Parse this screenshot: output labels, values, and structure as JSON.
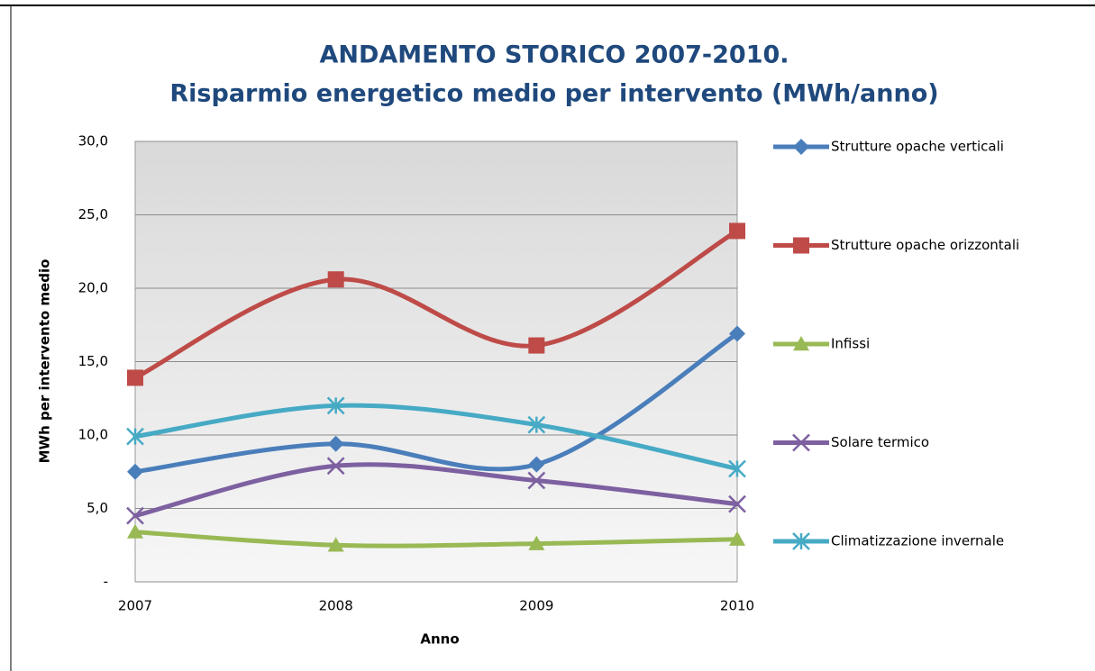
{
  "chart_data": {
    "type": "line",
    "title": "ANDAMENTO STORICO 2007-2010.",
    "subtitle": "Risparmio energetico medio per intervento (MWh/anno)",
    "x_label": "Anno",
    "y_label": "MWh per intervento medio",
    "categories": [
      "2007",
      "2008",
      "2009",
      "2010"
    ],
    "series": [
      {
        "name": "Strutture opache verticali",
        "color": "#4a7ebb",
        "marker": "diamond",
        "values": [
          7.5,
          9.4,
          8.0,
          16.9
        ]
      },
      {
        "name": "Strutture opache orizzontali",
        "color": "#be4b48",
        "marker": "square",
        "values": [
          13.9,
          20.6,
          16.1,
          23.9
        ]
      },
      {
        "name": "Infissi",
        "color": "#98b954",
        "marker": "triangle",
        "values": [
          3.4,
          2.5,
          2.6,
          2.9
        ]
      },
      {
        "name": "Solare termico",
        "color": "#7d60a0",
        "marker": "x",
        "values": [
          4.5,
          7.9,
          6.9,
          5.3
        ]
      },
      {
        "name": "Climatizzazione invernale",
        "color": "#46aac5",
        "marker": "star",
        "values": [
          9.9,
          12.0,
          10.7,
          7.7
        ]
      }
    ],
    "ylim": [
      0,
      30
    ],
    "yticks": [
      {
        "value": 0,
        "label": "-"
      },
      {
        "value": 5,
        "label": "5,0"
      },
      {
        "value": 10,
        "label": "10,0"
      },
      {
        "value": 15,
        "label": "15,0"
      },
      {
        "value": 20,
        "label": "20,0"
      },
      {
        "value": 25,
        "label": "25,0"
      },
      {
        "value": 30,
        "label": "30,0"
      }
    ],
    "grid": true,
    "smooth": true,
    "legend": "right"
  }
}
